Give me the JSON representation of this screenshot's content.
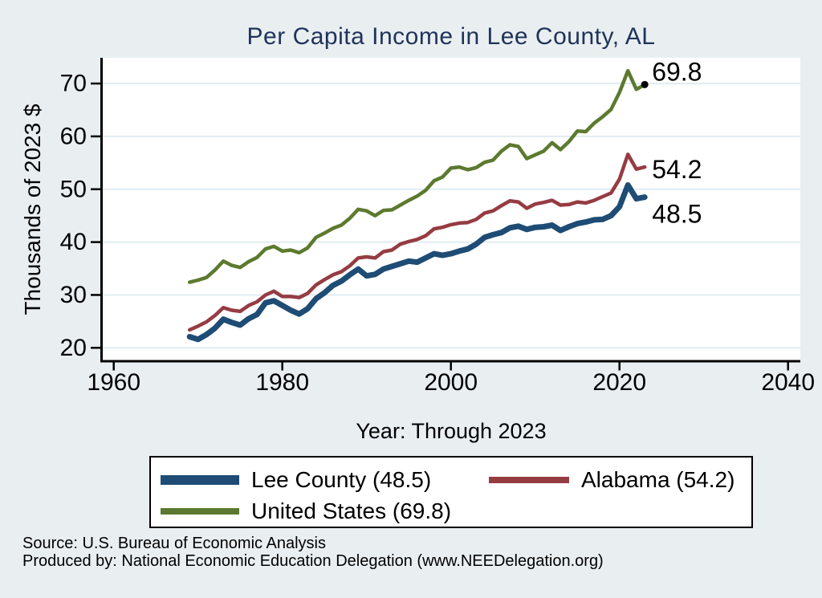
{
  "chart_data": {
    "type": "line",
    "title": "Per Capita Income in Lee County, AL",
    "xlabel": "Year: Through 2023",
    "ylabel": "Thousands of 2023 $",
    "x_range": [
      1960,
      2040
    ],
    "x_ticks": [
      1960,
      1980,
      2000,
      2020,
      2040
    ],
    "y_ticks": [
      20,
      30,
      40,
      50,
      60,
      70
    ],
    "ylim": [
      17.5,
      75
    ],
    "grid": "horizontal",
    "legend_position": "bottom",
    "years": [
      1969,
      1970,
      1971,
      1972,
      1973,
      1974,
      1975,
      1976,
      1977,
      1978,
      1979,
      1980,
      1981,
      1982,
      1983,
      1984,
      1985,
      1986,
      1987,
      1988,
      1989,
      1990,
      1991,
      1992,
      1993,
      1994,
      1995,
      1996,
      1997,
      1998,
      1999,
      2000,
      2001,
      2002,
      2003,
      2004,
      2005,
      2006,
      2007,
      2008,
      2009,
      2010,
      2011,
      2012,
      2013,
      2014,
      2015,
      2016,
      2017,
      2018,
      2019,
      2020,
      2021,
      2022,
      2023
    ],
    "series": [
      {
        "name": "Lee County",
        "legend_label": "Lee County (48.5)",
        "end_label": "48.5",
        "end_value": 48.5,
        "color": "#1e4c74",
        "values": [
          22.1,
          21.6,
          22.5,
          23.7,
          25.4,
          24.8,
          24.3,
          25.5,
          26.3,
          28.5,
          28.9,
          28.0,
          27.1,
          26.4,
          27.4,
          29.3,
          30.4,
          31.8,
          32.6,
          33.8,
          34.9,
          33.6,
          33.9,
          34.9,
          35.4,
          35.9,
          36.4,
          36.2,
          37.0,
          37.8,
          37.5,
          37.8,
          38.3,
          38.7,
          39.6,
          40.9,
          41.4,
          41.8,
          42.7,
          43.0,
          42.4,
          42.8,
          42.9,
          43.2,
          42.2,
          42.9,
          43.5,
          43.8,
          44.2,
          44.3,
          45.0,
          46.7,
          50.8,
          48.2,
          48.5
        ]
      },
      {
        "name": "Alabama",
        "legend_label": "Alabama (54.2)",
        "end_label": "54.2",
        "end_value": 54.2,
        "color": "#953c42",
        "values": [
          23.4,
          24.1,
          24.9,
          26.1,
          27.6,
          27.1,
          26.9,
          28.0,
          28.7,
          30.0,
          30.7,
          29.7,
          29.7,
          29.5,
          30.3,
          31.9,
          32.9,
          33.8,
          34.4,
          35.5,
          37.0,
          37.2,
          37.0,
          38.2,
          38.5,
          39.6,
          40.1,
          40.5,
          41.2,
          42.5,
          42.8,
          43.3,
          43.6,
          43.7,
          44.3,
          45.5,
          45.9,
          46.9,
          47.8,
          47.6,
          46.4,
          47.2,
          47.5,
          47.9,
          47.0,
          47.1,
          47.6,
          47.4,
          47.9,
          48.6,
          49.3,
          51.9,
          56.6,
          53.8,
          54.2
        ]
      },
      {
        "name": "United States",
        "legend_label": "United States (69.8)",
        "end_label": "69.8",
        "end_value": 69.8,
        "end_marker": true,
        "color": "#5c7a2f",
        "values": [
          32.4,
          32.8,
          33.3,
          34.7,
          36.4,
          35.6,
          35.2,
          36.3,
          37.1,
          38.7,
          39.2,
          38.3,
          38.5,
          38.0,
          38.9,
          40.9,
          41.7,
          42.6,
          43.2,
          44.5,
          46.2,
          45.9,
          45.0,
          46.0,
          46.1,
          47.0,
          47.9,
          48.7,
          49.8,
          51.6,
          52.3,
          54.0,
          54.2,
          53.7,
          54.1,
          55.1,
          55.5,
          57.2,
          58.4,
          58.1,
          55.8,
          56.5,
          57.2,
          58.8,
          57.5,
          59.0,
          61.0,
          60.9,
          62.5,
          63.7,
          65.1,
          68.3,
          72.4,
          68.9,
          69.8
        ]
      }
    ],
    "colors": {
      "background": "#e9eff1",
      "plot_background": "#ffffff",
      "gridline": "#e1ecf1",
      "axis": "#000000",
      "title": "#20335a",
      "end_marker": "#000000"
    }
  },
  "source_lines": [
    "Source: U.S. Bureau of Economic Analysis",
    "Produced by: National Economic Education Delegation (www.NEEDelegation.org)"
  ]
}
